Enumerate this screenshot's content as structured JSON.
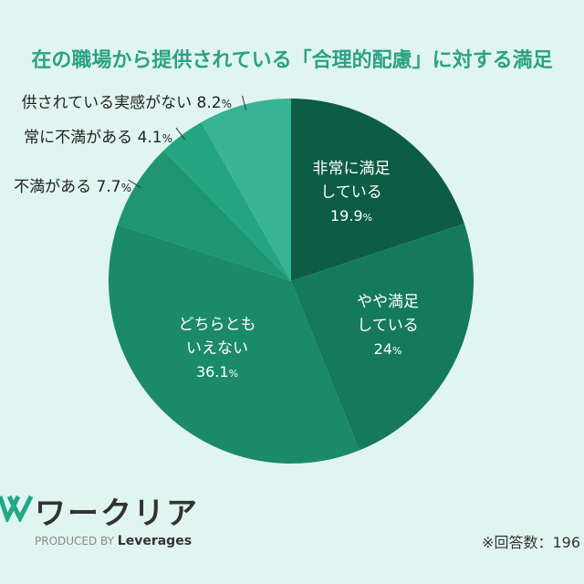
{
  "chart_data": {
    "type": "pie",
    "title": "在の職場から提供されている「合理的配慮」に対する満足",
    "slices": [
      {
        "label": "非常に満足している",
        "label_lines": [
          "非常に満足",
          "している"
        ],
        "value": 19.9,
        "color": "#0d5c44"
      },
      {
        "label": "やや満足している",
        "label_lines": [
          "やや満足",
          "している"
        ],
        "value": 24.0,
        "color": "#157a5c"
      },
      {
        "label": "どちらともいえない",
        "label_lines": [
          "どちらとも",
          "いえない"
        ],
        "value": 36.1,
        "color": "#1b8a68"
      },
      {
        "label": "不満がある",
        "value": 7.7,
        "color": "#1f9670"
      },
      {
        "label": "常に不満がある",
        "value": 4.1,
        "color": "#24a582"
      },
      {
        "label": "供されている実感がない",
        "value": 8.2,
        "color": "#38b394"
      }
    ],
    "value_unit": "%",
    "start": "top",
    "direction": "clockwise"
  },
  "footer": {
    "logo_text": "ワークリア",
    "produced_by": "PRODUCED BY",
    "brand": "Leverages",
    "note": "※回答数：196"
  }
}
